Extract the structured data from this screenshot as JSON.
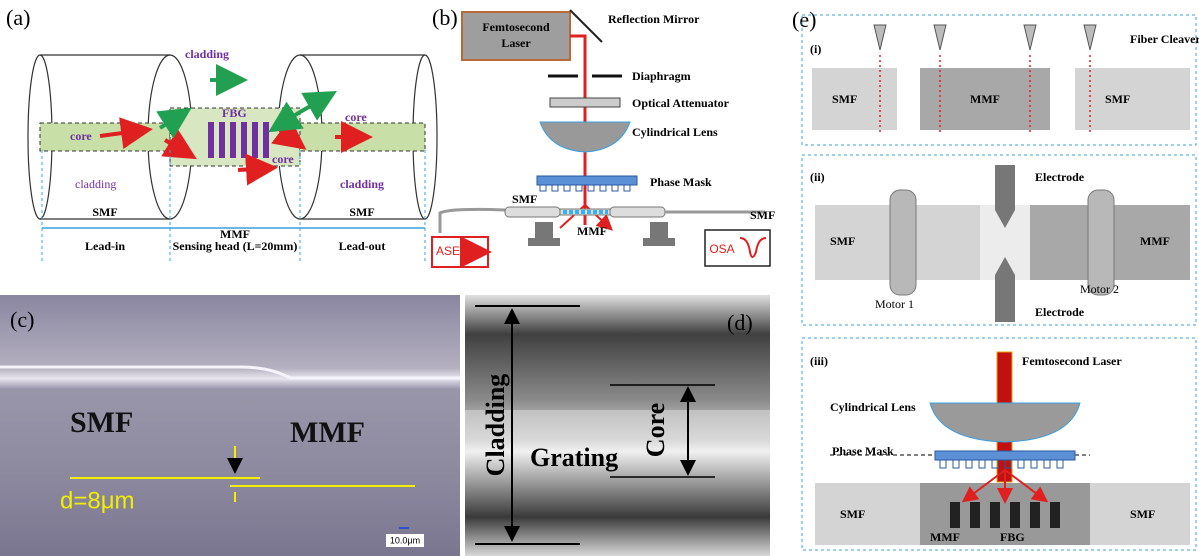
{
  "a": {
    "label": "(a)",
    "cladding_top": "cladding",
    "core_left": "core",
    "fbg": "FBG",
    "core_fbg": "core",
    "core_right": "core",
    "cladding_left": "cladding",
    "cladding_right": "cladding",
    "fibers": [
      "SMF",
      "MMF",
      "SMF"
    ],
    "regions": [
      "Lead-in",
      "Sensing head (L=20mm)",
      "Lead-out"
    ]
  },
  "b": {
    "label": "(b)",
    "laser": [
      "Femtosecond",
      "Laser"
    ],
    "mirror": "Reflection Mirror",
    "diaphragm": "Diaphragm",
    "attenuator": "Optical Attenuator",
    "lens": "Cylindrical Lens",
    "mask": "Phase Mask",
    "smf_left": "SMF",
    "smf_right": "SMF",
    "mmf": "MMF",
    "ase": "ASE",
    "osa": "OSA"
  },
  "c": {
    "label": "(c)",
    "smf": "SMF",
    "mmf": "MMF",
    "offset": "d=8μm",
    "scale": "10.0μm"
  },
  "d": {
    "label": "(d)",
    "cladding": "Cladding",
    "grating": "Grating",
    "core": "Core"
  },
  "e": {
    "label": "(e)",
    "step1": {
      "label": "(i)",
      "tool": "Fiber Cleaver",
      "fibers": [
        "SMF",
        "MMF",
        "SMF"
      ]
    },
    "step2": {
      "label": "(ii)",
      "electrode_top": "Electrode",
      "electrode_bottom": "Electrode",
      "fibers": [
        "SMF",
        "MMF"
      ],
      "motors": [
        "Motor 1",
        "Motor 2"
      ]
    },
    "step3": {
      "label": "(iii)",
      "laser": "Femtosecond Laser",
      "lens": "Cylindrical Lens",
      "mask": "Phase Mask",
      "fibers": [
        "SMF",
        "MMF",
        "SMF"
      ],
      "fbg": "FBG"
    }
  }
}
